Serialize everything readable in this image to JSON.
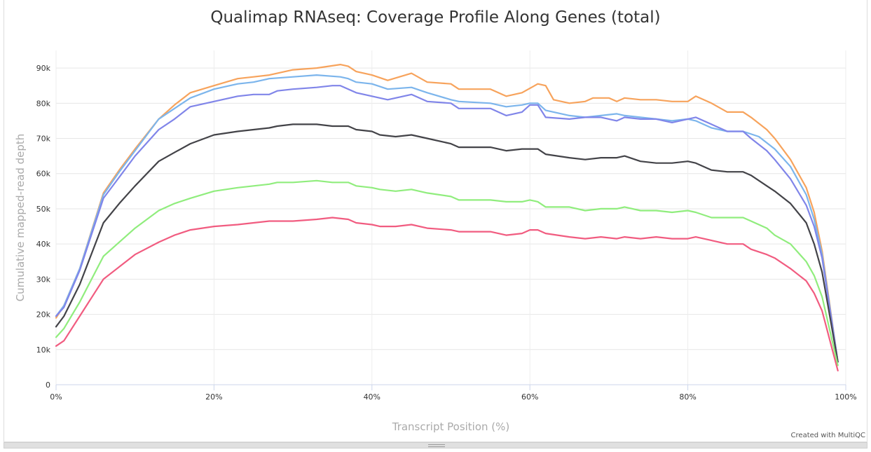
{
  "credit": "Created with MultiQC",
  "chart_data": {
    "type": "line",
    "title": "Qualimap RNAseq: Coverage Profile Along Genes (total)",
    "xlabel": "Transcript Position (%)",
    "ylabel": "Cumulative mapped-read depth",
    "xlim": [
      0,
      100
    ],
    "ylim": [
      0,
      95000
    ],
    "x_ticks": [
      0,
      20,
      40,
      60,
      80,
      100
    ],
    "x_tick_labels": [
      "0%",
      "20%",
      "40%",
      "60%",
      "80%",
      "100%"
    ],
    "y_ticks": [
      0,
      10000,
      20000,
      30000,
      40000,
      50000,
      60000,
      70000,
      80000,
      90000
    ],
    "y_tick_labels": [
      "0",
      "10k",
      "20k",
      "30k",
      "40k",
      "50k",
      "60k",
      "70k",
      "80k",
      "90k"
    ],
    "grid": true,
    "legend": "none",
    "series": [
      {
        "color": "#f7a35c",
        "points": [
          [
            0,
            19000
          ],
          [
            1,
            22500
          ],
          [
            3,
            33000
          ],
          [
            6,
            54500
          ],
          [
            8,
            61000
          ],
          [
            10,
            67000
          ],
          [
            13,
            75500
          ],
          [
            15,
            79500
          ],
          [
            17,
            83000
          ],
          [
            20,
            85000
          ],
          [
            23,
            87000
          ],
          [
            25,
            87500
          ],
          [
            27,
            88000
          ],
          [
            30,
            89500
          ],
          [
            33,
            90000
          ],
          [
            36,
            91000
          ],
          [
            37,
            90500
          ],
          [
            38,
            89000
          ],
          [
            40,
            88000
          ],
          [
            42,
            86500
          ],
          [
            45,
            88500
          ],
          [
            47,
            86000
          ],
          [
            50,
            85500
          ],
          [
            51,
            84000
          ],
          [
            55,
            84000
          ],
          [
            57,
            82000
          ],
          [
            59,
            83000
          ],
          [
            61,
            85500
          ],
          [
            62,
            85000
          ],
          [
            63,
            81000
          ],
          [
            65,
            80000
          ],
          [
            67,
            80500
          ],
          [
            68,
            81500
          ],
          [
            70,
            81500
          ],
          [
            71,
            80500
          ],
          [
            72,
            81500
          ],
          [
            74,
            81000
          ],
          [
            76,
            81000
          ],
          [
            78,
            80500
          ],
          [
            80,
            80500
          ],
          [
            81,
            82000
          ],
          [
            83,
            80000
          ],
          [
            85,
            77500
          ],
          [
            87,
            77500
          ],
          [
            88,
            76000
          ],
          [
            90,
            72500
          ],
          [
            91,
            70000
          ],
          [
            93,
            64000
          ],
          [
            95,
            56000
          ],
          [
            96,
            49000
          ],
          [
            97,
            38000
          ],
          [
            99,
            6500
          ]
        ]
      },
      {
        "color": "#7cb5ec",
        "points": [
          [
            0,
            19500
          ],
          [
            1,
            22500
          ],
          [
            3,
            33000
          ],
          [
            6,
            54000
          ],
          [
            8,
            60500
          ],
          [
            10,
            66500
          ],
          [
            13,
            75500
          ],
          [
            15,
            78500
          ],
          [
            17,
            81500
          ],
          [
            20,
            84000
          ],
          [
            23,
            85500
          ],
          [
            25,
            86000
          ],
          [
            27,
            87000
          ],
          [
            30,
            87500
          ],
          [
            33,
            88000
          ],
          [
            36,
            87500
          ],
          [
            37,
            87000
          ],
          [
            38,
            86000
          ],
          [
            40,
            85500
          ],
          [
            42,
            84000
          ],
          [
            45,
            84500
          ],
          [
            47,
            83000
          ],
          [
            50,
            81000
          ],
          [
            51,
            80500
          ],
          [
            55,
            80000
          ],
          [
            57,
            79000
          ],
          [
            59,
            79500
          ],
          [
            60,
            80000
          ],
          [
            61,
            80000
          ],
          [
            62,
            78000
          ],
          [
            65,
            76500
          ],
          [
            67,
            76000
          ],
          [
            69,
            76500
          ],
          [
            71,
            77000
          ],
          [
            72,
            76500
          ],
          [
            74,
            76000
          ],
          [
            76,
            75500
          ],
          [
            78,
            75000
          ],
          [
            80,
            75500
          ],
          [
            81,
            75000
          ],
          [
            83,
            73000
          ],
          [
            85,
            72000
          ],
          [
            87,
            72000
          ],
          [
            89,
            70500
          ],
          [
            91,
            67000
          ],
          [
            93,
            62000
          ],
          [
            95,
            54000
          ],
          [
            96,
            47000
          ],
          [
            97,
            37000
          ],
          [
            99,
            6500
          ]
        ]
      },
      {
        "color": "#8085e9",
        "points": [
          [
            0,
            19500
          ],
          [
            1,
            22000
          ],
          [
            3,
            32500
          ],
          [
            6,
            53000
          ],
          [
            8,
            59000
          ],
          [
            10,
            65000
          ],
          [
            13,
            72500
          ],
          [
            15,
            75500
          ],
          [
            17,
            79000
          ],
          [
            20,
            80500
          ],
          [
            23,
            82000
          ],
          [
            25,
            82500
          ],
          [
            27,
            82500
          ],
          [
            28,
            83500
          ],
          [
            30,
            84000
          ],
          [
            33,
            84500
          ],
          [
            35,
            85000
          ],
          [
            36,
            85000
          ],
          [
            37,
            84000
          ],
          [
            38,
            83000
          ],
          [
            40,
            82000
          ],
          [
            42,
            81000
          ],
          [
            45,
            82500
          ],
          [
            47,
            80500
          ],
          [
            50,
            80000
          ],
          [
            51,
            78500
          ],
          [
            55,
            78500
          ],
          [
            57,
            76500
          ],
          [
            59,
            77500
          ],
          [
            60,
            79500
          ],
          [
            61,
            79500
          ],
          [
            62,
            76000
          ],
          [
            65,
            75500
          ],
          [
            67,
            76000
          ],
          [
            69,
            76000
          ],
          [
            71,
            75000
          ],
          [
            72,
            76000
          ],
          [
            74,
            75500
          ],
          [
            76,
            75500
          ],
          [
            78,
            74500
          ],
          [
            80,
            75500
          ],
          [
            81,
            76000
          ],
          [
            83,
            74000
          ],
          [
            85,
            72000
          ],
          [
            87,
            72000
          ],
          [
            88,
            70000
          ],
          [
            90,
            66500
          ],
          [
            91,
            64000
          ],
          [
            93,
            58500
          ],
          [
            95,
            51000
          ],
          [
            96,
            45000
          ],
          [
            97,
            36000
          ],
          [
            99,
            6500
          ]
        ]
      },
      {
        "color": "#434348",
        "points": [
          [
            0,
            16500
          ],
          [
            1,
            19500
          ],
          [
            3,
            28500
          ],
          [
            6,
            46000
          ],
          [
            8,
            51500
          ],
          [
            10,
            56500
          ],
          [
            13,
            63500
          ],
          [
            15,
            66000
          ],
          [
            17,
            68500
          ],
          [
            20,
            71000
          ],
          [
            23,
            72000
          ],
          [
            25,
            72500
          ],
          [
            27,
            73000
          ],
          [
            28,
            73500
          ],
          [
            30,
            74000
          ],
          [
            33,
            74000
          ],
          [
            35,
            73500
          ],
          [
            37,
            73500
          ],
          [
            38,
            72500
          ],
          [
            40,
            72000
          ],
          [
            41,
            71000
          ],
          [
            43,
            70500
          ],
          [
            45,
            71000
          ],
          [
            47,
            70000
          ],
          [
            50,
            68500
          ],
          [
            51,
            67500
          ],
          [
            55,
            67500
          ],
          [
            57,
            66500
          ],
          [
            59,
            67000
          ],
          [
            60,
            67000
          ],
          [
            61,
            67000
          ],
          [
            62,
            65500
          ],
          [
            65,
            64500
          ],
          [
            67,
            64000
          ],
          [
            69,
            64500
          ],
          [
            71,
            64500
          ],
          [
            72,
            65000
          ],
          [
            74,
            63500
          ],
          [
            76,
            63000
          ],
          [
            78,
            63000
          ],
          [
            80,
            63500
          ],
          [
            81,
            63000
          ],
          [
            83,
            61000
          ],
          [
            85,
            60500
          ],
          [
            87,
            60500
          ],
          [
            88,
            59500
          ],
          [
            90,
            56500
          ],
          [
            91,
            55000
          ],
          [
            93,
            51500
          ],
          [
            95,
            46000
          ],
          [
            96,
            40000
          ],
          [
            97,
            32000
          ],
          [
            99,
            6500
          ]
        ]
      },
      {
        "color": "#90ed7d",
        "points": [
          [
            0,
            13500
          ],
          [
            1,
            16000
          ],
          [
            3,
            23500
          ],
          [
            6,
            36500
          ],
          [
            8,
            40500
          ],
          [
            10,
            44500
          ],
          [
            13,
            49500
          ],
          [
            15,
            51500
          ],
          [
            17,
            53000
          ],
          [
            20,
            55000
          ],
          [
            23,
            56000
          ],
          [
            25,
            56500
          ],
          [
            27,
            57000
          ],
          [
            28,
            57500
          ],
          [
            30,
            57500
          ],
          [
            33,
            58000
          ],
          [
            35,
            57500
          ],
          [
            37,
            57500
          ],
          [
            38,
            56500
          ],
          [
            40,
            56000
          ],
          [
            41,
            55500
          ],
          [
            43,
            55000
          ],
          [
            45,
            55500
          ],
          [
            47,
            54500
          ],
          [
            50,
            53500
          ],
          [
            51,
            52500
          ],
          [
            55,
            52500
          ],
          [
            57,
            52000
          ],
          [
            59,
            52000
          ],
          [
            60,
            52500
          ],
          [
            61,
            52000
          ],
          [
            62,
            50500
          ],
          [
            65,
            50500
          ],
          [
            67,
            49500
          ],
          [
            69,
            50000
          ],
          [
            71,
            50000
          ],
          [
            72,
            50500
          ],
          [
            74,
            49500
          ],
          [
            76,
            49500
          ],
          [
            78,
            49000
          ],
          [
            80,
            49500
          ],
          [
            81,
            49000
          ],
          [
            83,
            47500
          ],
          [
            85,
            47500
          ],
          [
            87,
            47500
          ],
          [
            88,
            46500
          ],
          [
            90,
            44500
          ],
          [
            91,
            42500
          ],
          [
            93,
            40000
          ],
          [
            95,
            35000
          ],
          [
            96,
            31000
          ],
          [
            97,
            25000
          ],
          [
            99,
            5500
          ]
        ]
      },
      {
        "color": "#f15c80",
        "points": [
          [
            0,
            11000
          ],
          [
            1,
            12500
          ],
          [
            3,
            19500
          ],
          [
            6,
            30000
          ],
          [
            8,
            33500
          ],
          [
            10,
            37000
          ],
          [
            13,
            40500
          ],
          [
            15,
            42500
          ],
          [
            17,
            44000
          ],
          [
            20,
            45000
          ],
          [
            23,
            45500
          ],
          [
            25,
            46000
          ],
          [
            27,
            46500
          ],
          [
            30,
            46500
          ],
          [
            33,
            47000
          ],
          [
            35,
            47500
          ],
          [
            37,
            47000
          ],
          [
            38,
            46000
          ],
          [
            40,
            45500
          ],
          [
            41,
            45000
          ],
          [
            43,
            45000
          ],
          [
            45,
            45500
          ],
          [
            47,
            44500
          ],
          [
            50,
            44000
          ],
          [
            51,
            43500
          ],
          [
            55,
            43500
          ],
          [
            57,
            42500
          ],
          [
            59,
            43000
          ],
          [
            60,
            44000
          ],
          [
            61,
            44000
          ],
          [
            62,
            43000
          ],
          [
            65,
            42000
          ],
          [
            67,
            41500
          ],
          [
            69,
            42000
          ],
          [
            71,
            41500
          ],
          [
            72,
            42000
          ],
          [
            74,
            41500
          ],
          [
            76,
            42000
          ],
          [
            78,
            41500
          ],
          [
            80,
            41500
          ],
          [
            81,
            42000
          ],
          [
            83,
            41000
          ],
          [
            85,
            40000
          ],
          [
            87,
            40000
          ],
          [
            88,
            38500
          ],
          [
            90,
            37000
          ],
          [
            91,
            36000
          ],
          [
            93,
            33000
          ],
          [
            95,
            29500
          ],
          [
            96,
            26000
          ],
          [
            97,
            21000
          ],
          [
            99,
            4000
          ]
        ]
      }
    ]
  }
}
